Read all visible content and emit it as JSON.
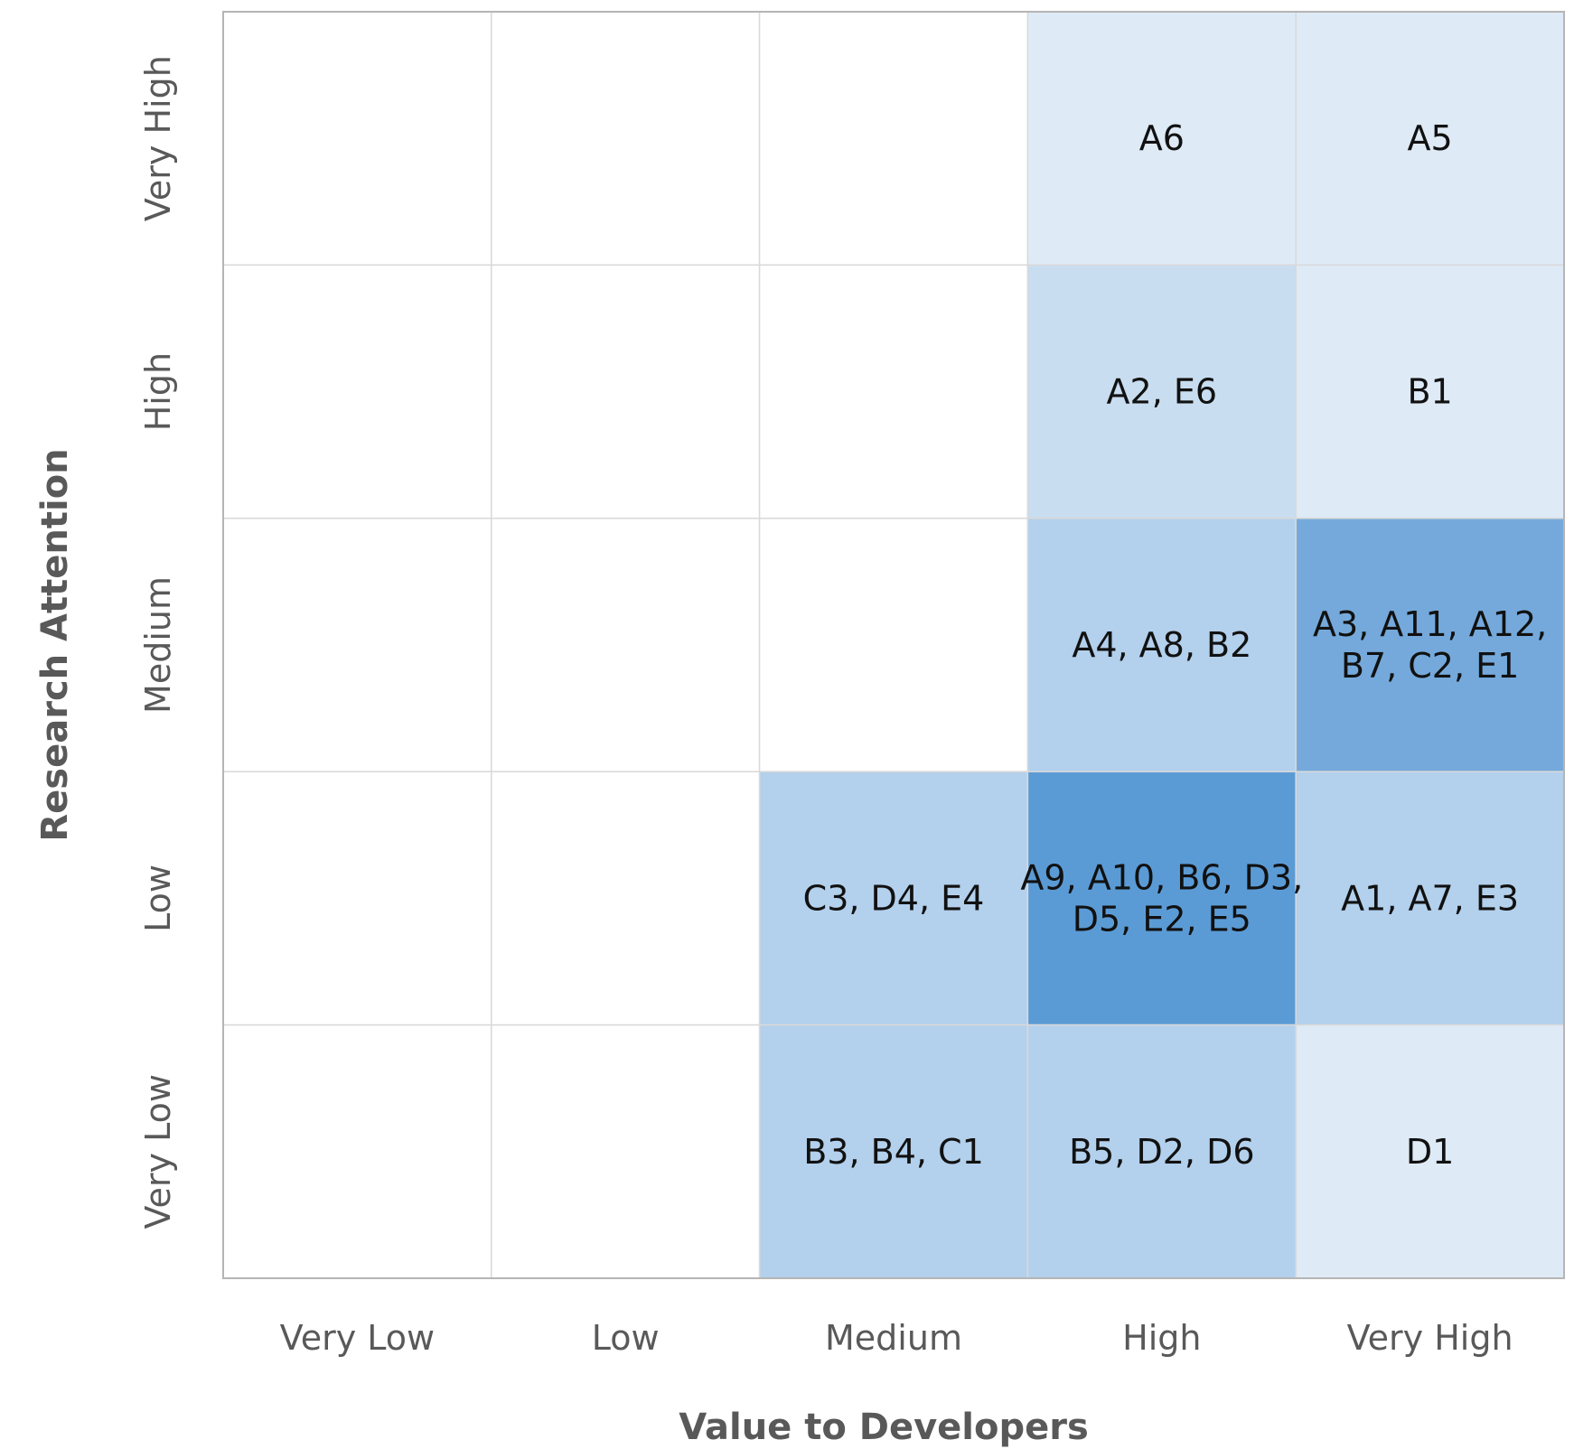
{
  "chart_data": {
    "type": "heatmap",
    "title": "",
    "xlabel": "Value to Developers",
    "ylabel": "Research Attention",
    "x_categories": [
      "Very Low",
      "Low",
      "Medium",
      "High",
      "Very High"
    ],
    "y_categories": [
      "Very High",
      "High",
      "Medium",
      "Low",
      "Very Low"
    ],
    "cells": [
      [
        "",
        "",
        "",
        "A6",
        "A5"
      ],
      [
        "",
        "",
        "",
        "A2, E6",
        "B1"
      ],
      [
        "",
        "",
        "",
        "A4, A8, B2",
        "A3, A11, A12, B7, C2, E1"
      ],
      [
        "",
        "",
        "C3, D4, E4",
        "A9, A10, B6, D3, D5, E2, E5",
        "A1, A7, E3"
      ],
      [
        "",
        "",
        "B3, B4, C1",
        "B5, D2, D6",
        "D1"
      ]
    ],
    "counts": [
      [
        0,
        0,
        0,
        1,
        1
      ],
      [
        0,
        0,
        0,
        2,
        1
      ],
      [
        0,
        0,
        0,
        3,
        6
      ],
      [
        0,
        0,
        3,
        7,
        3
      ],
      [
        0,
        0,
        3,
        3,
        1
      ]
    ],
    "color_scale": [
      "#ffffff",
      "#deeaf6",
      "#c9ddf1",
      "#b3d0ec",
      "#75a9db",
      "#5b9bd5"
    ],
    "grid": true
  }
}
